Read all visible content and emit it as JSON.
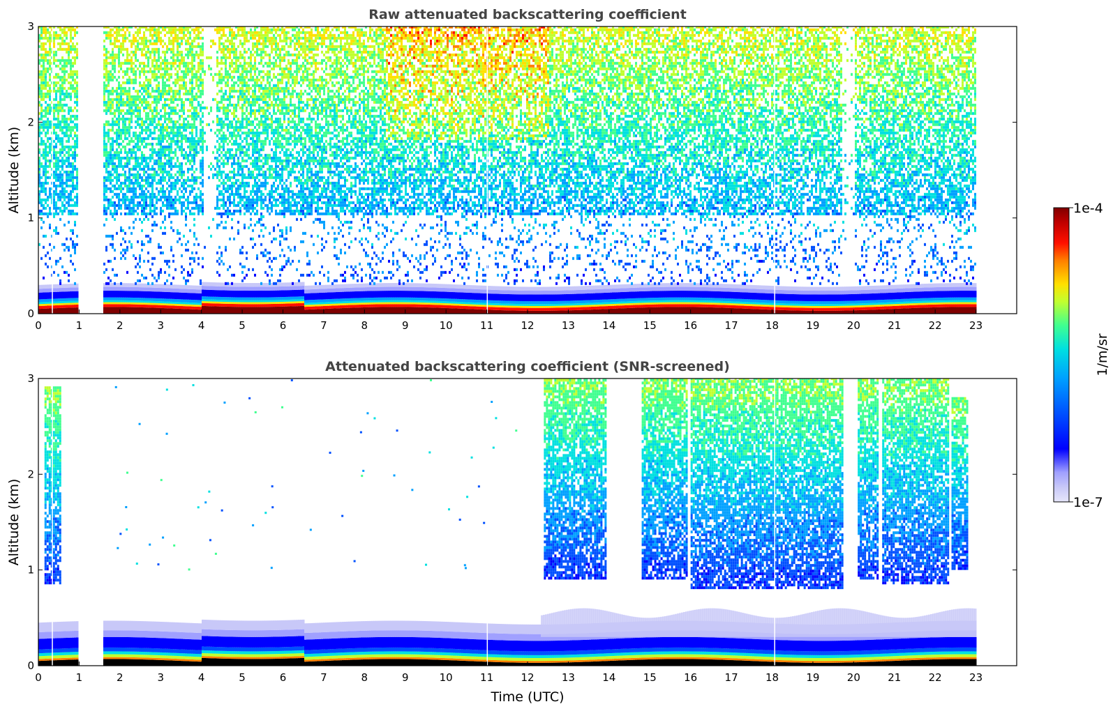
{
  "chart_data": [
    {
      "type": "heatmap",
      "title": "Raw attenuated backscattering coefficient",
      "xlabel": "",
      "ylabel": "Altitude (km)",
      "xlim": [
        0,
        24
      ],
      "ylim": [
        0,
        3
      ],
      "x_ticks": [
        "0",
        "1",
        "2",
        "3",
        "4",
        "5",
        "6",
        "7",
        "8",
        "9",
        "10",
        "11",
        "12",
        "13",
        "14",
        "15",
        "16",
        "17",
        "18",
        "19",
        "20",
        "21",
        "22",
        "23"
      ],
      "y_ticks": [
        "0",
        "1",
        "2",
        "3"
      ],
      "data_end_time": 23,
      "gaps": [
        [
          0.95,
          1.55
        ]
      ],
      "thin_gaps": [
        0.33,
        11.0,
        18.05
      ],
      "surface_layer_top_km": 0.22,
      "noise_clear_band_km": [
        0.3,
        1.0
      ],
      "noise_free_column_times": [
        4.2,
        19.85
      ]
    },
    {
      "type": "heatmap",
      "title": "Attenuated backscattering coefficient (SNR-screened)",
      "xlabel": "Time (UTC)",
      "ylabel": "Altitude (km)",
      "xlim": [
        0,
        24
      ],
      "ylim": [
        0,
        3
      ],
      "x_ticks": [
        "0",
        "1",
        "2",
        "3",
        "4",
        "5",
        "6",
        "7",
        "8",
        "9",
        "10",
        "11",
        "12",
        "13",
        "14",
        "15",
        "16",
        "17",
        "18",
        "19",
        "20",
        "21",
        "22",
        "23"
      ],
      "y_ticks": [
        "0",
        "1",
        "2",
        "3"
      ],
      "data_end_time": 23,
      "gaps": [
        [
          0.95,
          1.55
        ]
      ],
      "thin_gaps": [
        0.33,
        11.0,
        18.05
      ],
      "cloud_blocks": [
        {
          "start": 0.15,
          "end": 0.55,
          "base_km": 0.85,
          "top_km": 2.9
        },
        {
          "start": 12.4,
          "end": 13.9,
          "base_km": 0.9,
          "top_km": 3.0
        },
        {
          "start": 14.8,
          "end": 15.9,
          "base_km": 0.9,
          "top_km": 3.0
        },
        {
          "start": 16.0,
          "end": 19.7,
          "base_km": 0.8,
          "top_km": 3.0
        },
        {
          "start": 20.1,
          "end": 20.6,
          "base_km": 0.9,
          "top_km": 3.0
        },
        {
          "start": 20.7,
          "end": 22.3,
          "base_km": 0.85,
          "top_km": 3.0
        },
        {
          "start": 22.4,
          "end": 22.8,
          "base_km": 1.0,
          "top_km": 2.8
        }
      ]
    }
  ],
  "colorbar": {
    "label": "1/m/sr",
    "max_label": "1e-4",
    "min_label": "1e-7",
    "scale": "log",
    "range": [
      1e-07,
      0.0001
    ],
    "colormap": [
      "#e6e6fa",
      "#c8c8f8",
      "#a0a0ff",
      "#0000ff",
      "#0050ff",
      "#00a0ff",
      "#00e0e0",
      "#40ff90",
      "#c0ff30",
      "#ffe000",
      "#ff8000",
      "#ff1000",
      "#c00000",
      "#800000"
    ]
  }
}
